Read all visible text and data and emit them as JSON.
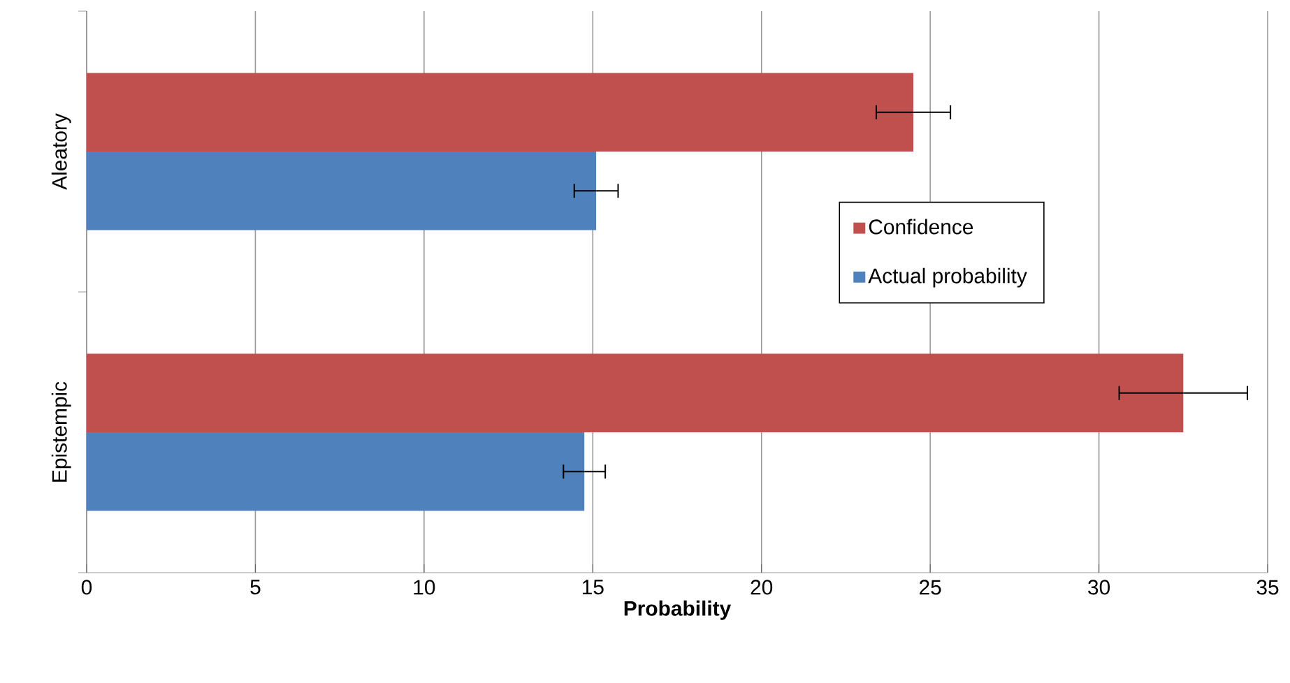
{
  "chart_data": {
    "type": "bar",
    "orientation": "horizontal",
    "xlabel": "Probability",
    "categories": [
      "Aleatory",
      "Epistempic"
    ],
    "series": [
      {
        "name": "Confidence",
        "color": "#c0504d",
        "values": [
          24.5,
          32.5
        ],
        "errors": [
          1.1,
          1.9
        ]
      },
      {
        "name": "Actual probability",
        "color": "#4f81bd",
        "values": [
          15.1,
          14.75
        ],
        "errors": [
          0.65,
          0.62
        ]
      }
    ],
    "xlim": [
      0,
      35
    ],
    "xticks": [
      0,
      5,
      10,
      15,
      20,
      25,
      30,
      35
    ],
    "grid": "x",
    "legend": "right"
  }
}
